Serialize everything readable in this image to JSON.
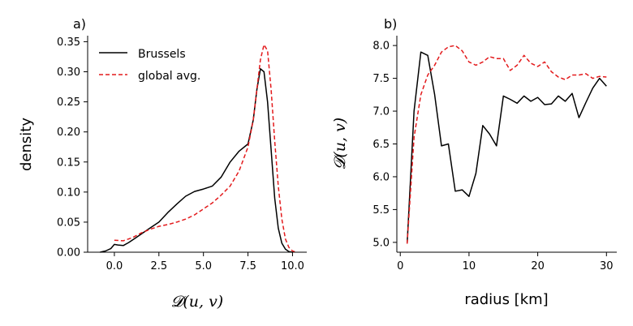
{
  "chart_data": [
    {
      "panel_label": "a)",
      "type": "line",
      "xlabel": "𝓓(u, v)",
      "ylabel": "density",
      "xlim": [
        -1.5,
        10.8
      ],
      "ylim": [
        0,
        0.36
      ],
      "xticks": [
        0.0,
        2.5,
        5.0,
        7.5,
        10.0
      ],
      "xtick_labels": [
        "0.0",
        "2.5",
        "5.0",
        "7.5",
        "10.0"
      ],
      "yticks": [
        0.0,
        0.05,
        0.1,
        0.15,
        0.2,
        0.25,
        0.3,
        0.35
      ],
      "ytick_labels": [
        "0.00",
        "0.05",
        "0.10",
        "0.15",
        "0.20",
        "0.25",
        "0.30",
        "0.35"
      ],
      "grid": false,
      "legend": "top-left",
      "series": [
        {
          "name": "Brussels",
          "color": "#000000",
          "style": "solid",
          "x": [
            -0.8,
            -0.5,
            -0.2,
            0.0,
            0.2,
            0.5,
            0.8,
            1.2,
            1.6,
            2.0,
            2.5,
            3.0,
            3.5,
            4.0,
            4.5,
            5.0,
            5.5,
            6.0,
            6.5,
            7.0,
            7.5,
            7.8,
            8.0,
            8.2,
            8.4,
            8.6,
            8.8,
            9.0,
            9.2,
            9.4,
            9.6,
            9.8,
            10.0
          ],
          "y": [
            0.0,
            0.002,
            0.006,
            0.013,
            0.012,
            0.011,
            0.016,
            0.024,
            0.032,
            0.04,
            0.05,
            0.066,
            0.08,
            0.093,
            0.101,
            0.105,
            0.11,
            0.125,
            0.15,
            0.168,
            0.18,
            0.22,
            0.27,
            0.305,
            0.3,
            0.25,
            0.17,
            0.09,
            0.04,
            0.015,
            0.005,
            0.001,
            0.0
          ]
        },
        {
          "name": "global avg.",
          "color": "#e31a1c",
          "style": "dashed",
          "x": [
            0.0,
            0.5,
            1.0,
            1.5,
            2.0,
            2.5,
            3.0,
            3.5,
            4.0,
            4.5,
            5.0,
            5.5,
            6.0,
            6.5,
            7.0,
            7.5,
            7.8,
            8.0,
            8.2,
            8.4,
            8.6,
            8.8,
            9.0,
            9.2,
            9.4,
            9.6,
            9.8,
            10.0,
            10.2
          ],
          "y": [
            0.02,
            0.019,
            0.024,
            0.032,
            0.038,
            0.043,
            0.046,
            0.05,
            0.055,
            0.062,
            0.072,
            0.082,
            0.095,
            0.11,
            0.135,
            0.175,
            0.22,
            0.27,
            0.32,
            0.345,
            0.335,
            0.27,
            0.185,
            0.11,
            0.055,
            0.022,
            0.008,
            0.002,
            0.0
          ]
        }
      ]
    },
    {
      "panel_label": "b)",
      "type": "line",
      "xlabel": "radius [km]",
      "ylabel": "𝓓(u, v)",
      "xlim": [
        -0.5,
        31.5
      ],
      "ylim": [
        4.85,
        8.15
      ],
      "xticks": [
        0,
        10,
        20,
        30
      ],
      "xtick_labels": [
        "0",
        "10",
        "20",
        "30"
      ],
      "yticks": [
        5.0,
        5.5,
        6.0,
        6.5,
        7.0,
        7.5,
        8.0
      ],
      "ytick_labels": [
        "5.0",
        "5.5",
        "6.0",
        "6.5",
        "7.0",
        "7.5",
        "8.0"
      ],
      "grid": false,
      "series": [
        {
          "name": "Brussels",
          "color": "#000000",
          "style": "solid",
          "x": [
            1,
            2,
            3,
            4,
            5,
            6,
            7,
            8,
            9,
            10,
            11,
            12,
            13,
            14,
            15,
            16,
            17,
            18,
            19,
            20,
            21,
            22,
            23,
            24,
            25,
            26,
            27,
            28,
            29,
            30
          ],
          "y": [
            4.98,
            7.0,
            7.9,
            7.85,
            7.25,
            6.47,
            6.5,
            5.78,
            5.8,
            5.7,
            6.05,
            6.78,
            6.65,
            6.47,
            7.23,
            7.18,
            7.12,
            7.23,
            7.15,
            7.21,
            7.1,
            7.11,
            7.23,
            7.15,
            7.27,
            6.9,
            7.13,
            7.35,
            7.5,
            7.38
          ]
        },
        {
          "name": "global avg.",
          "color": "#e31a1c",
          "style": "dashed",
          "x": [
            1,
            2,
            3,
            4,
            5,
            6,
            7,
            8,
            9,
            10,
            11,
            12,
            13,
            14,
            15,
            16,
            17,
            18,
            19,
            20,
            21,
            22,
            23,
            24,
            25,
            26,
            27,
            28,
            29,
            30
          ],
          "y": [
            4.98,
            6.6,
            7.25,
            7.55,
            7.7,
            7.9,
            7.98,
            8.0,
            7.92,
            7.75,
            7.7,
            7.75,
            7.83,
            7.8,
            7.8,
            7.62,
            7.7,
            7.85,
            7.73,
            7.68,
            7.75,
            7.6,
            7.52,
            7.48,
            7.55,
            7.55,
            7.57,
            7.5,
            7.53,
            7.52
          ]
        }
      ]
    }
  ]
}
